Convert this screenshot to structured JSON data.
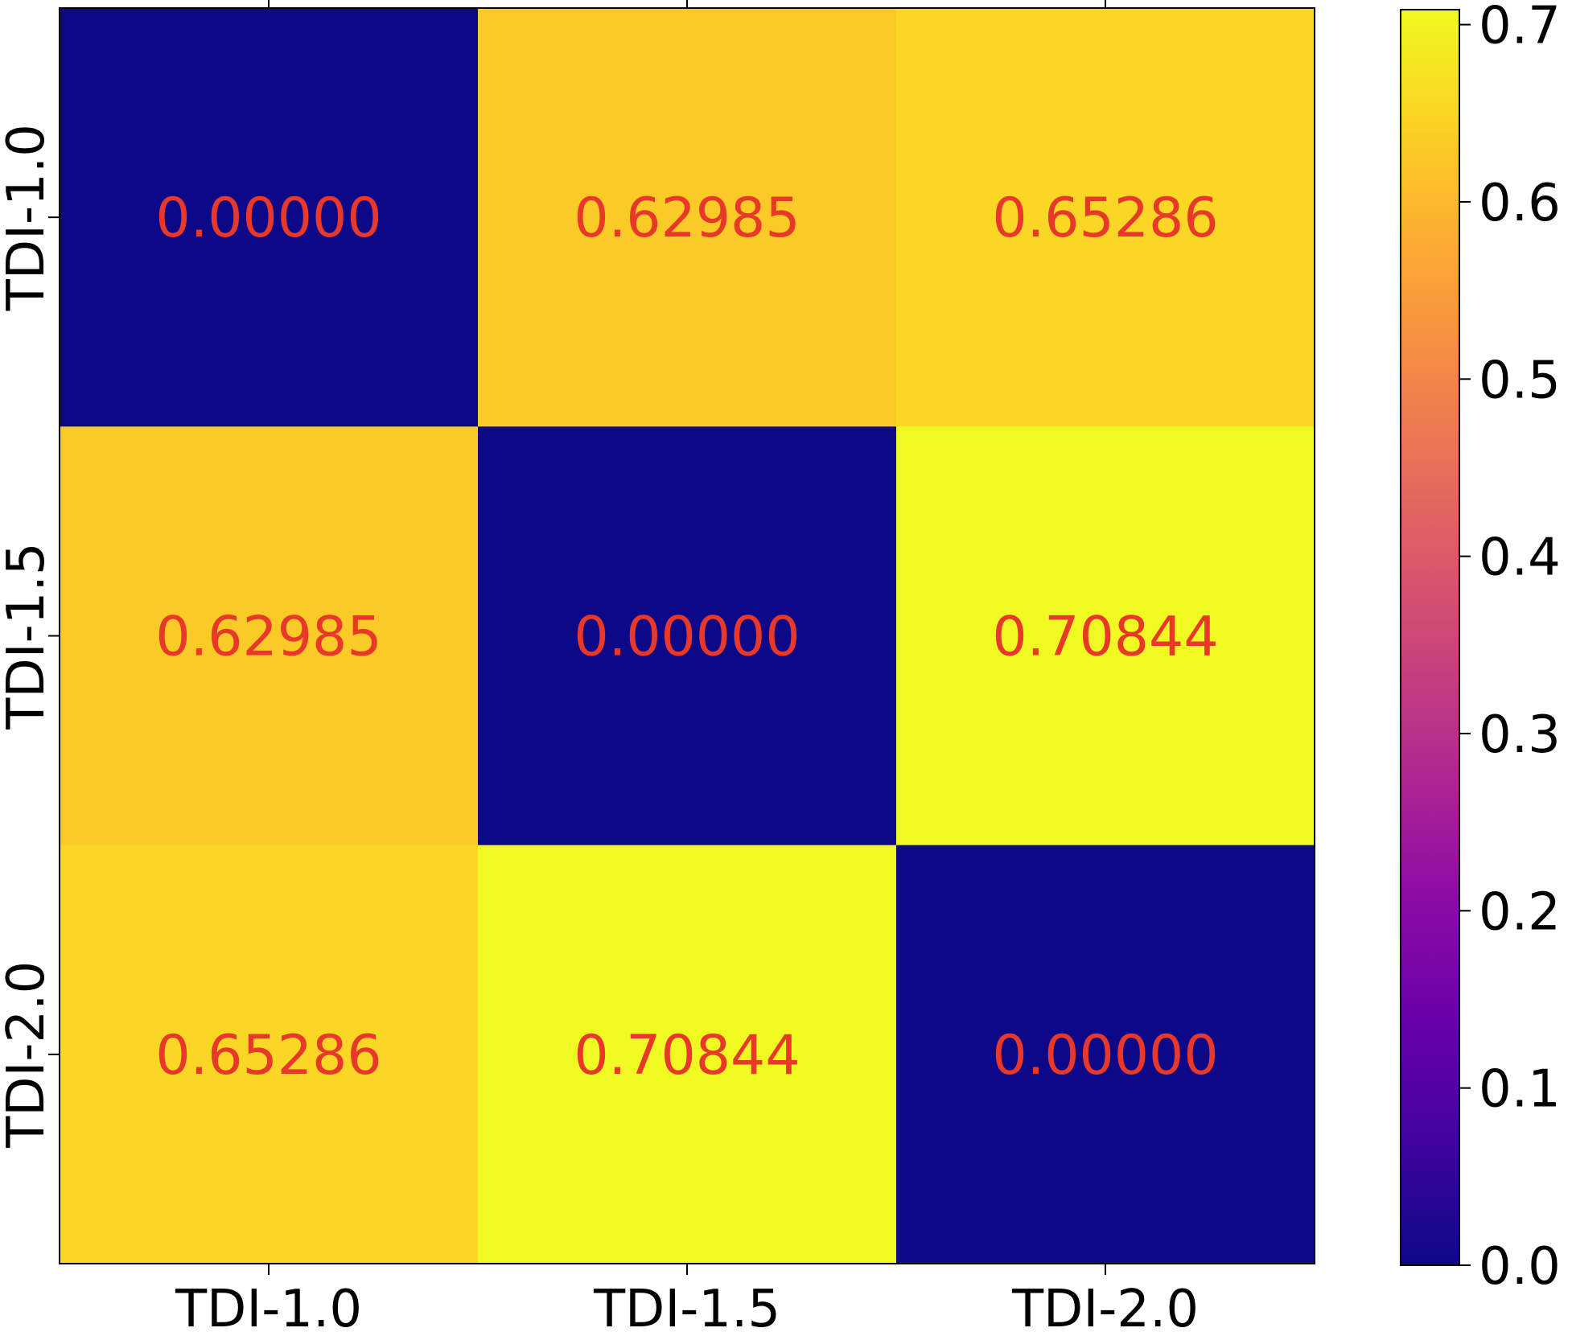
{
  "chart_data": {
    "type": "heatmap",
    "title": "",
    "xlabel": "",
    "ylabel": "",
    "x_categories": [
      "TDI-1.0",
      "TDI-1.5",
      "TDI-2.0"
    ],
    "y_categories": [
      "TDI-1.0",
      "TDI-1.5",
      "TDI-2.0"
    ],
    "values": [
      [
        0.0,
        0.62985,
        0.65286
      ],
      [
        0.62985,
        0.0,
        0.70844
      ],
      [
        0.65286,
        0.70844,
        0.0
      ]
    ],
    "cell_labels": [
      [
        "0.00000",
        "0.62985",
        "0.65286"
      ],
      [
        "0.62985",
        "0.00000",
        "0.70844"
      ],
      [
        "0.65286",
        "0.70844",
        "0.00000"
      ]
    ],
    "colormap": "plasma",
    "annotation_color": "#e8382a",
    "colorbar": {
      "range": [
        0.0,
        0.70844
      ],
      "ticks": [
        0.0,
        0.1,
        0.2,
        0.3,
        0.4,
        0.5,
        0.6,
        0.7
      ],
      "tick_labels": [
        "0.0",
        "0.1",
        "0.2",
        "0.3",
        "0.4",
        "0.5",
        "0.6",
        "0.7"
      ]
    }
  }
}
